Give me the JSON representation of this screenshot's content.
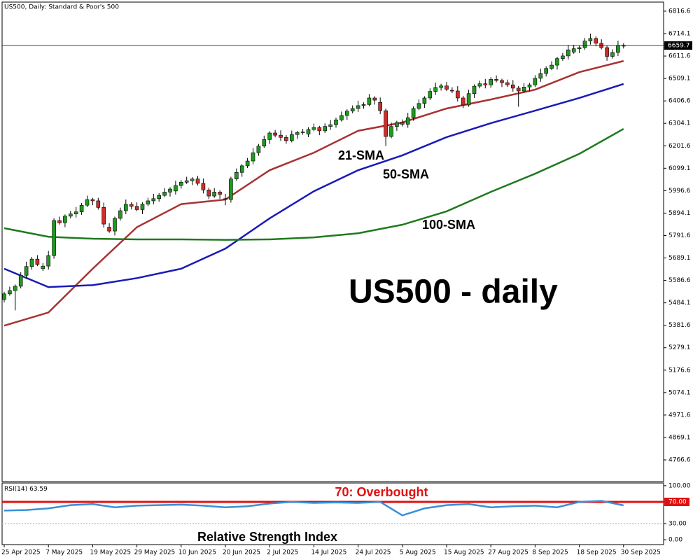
{
  "chart_data": [
    {
      "type": "candlestick",
      "title": "US500, Daily:  Standard & Poor's 500",
      "annotation": "US500 - daily",
      "categories": [
        "25 Apr 2025",
        null,
        null,
        null,
        null,
        null,
        null,
        null,
        "7 May 2025",
        null,
        null,
        null,
        null,
        null,
        null,
        null,
        "19 May 2025",
        null,
        null,
        null,
        null,
        null,
        null,
        null,
        "29 May 2025",
        null,
        null,
        null,
        null,
        null,
        null,
        null,
        "10 Jun 2025",
        null,
        null,
        null,
        null,
        null,
        null,
        null,
        "20 Jun 2025",
        null,
        null,
        null,
        null,
        null,
        null,
        null,
        "2 Jul 2025",
        null,
        null,
        null,
        null,
        null,
        null,
        null,
        "14 Jul 2025",
        null,
        null,
        null,
        null,
        null,
        null,
        null,
        "24 Jul 2025",
        null,
        null,
        null,
        null,
        null,
        null,
        null,
        "5 Aug 2025",
        null,
        null,
        null,
        null,
        null,
        null,
        null,
        "15 Aug 2025",
        null,
        null,
        null,
        null,
        null,
        null,
        null,
        "27 Aug 2025",
        null,
        null,
        null,
        null,
        null,
        null,
        null,
        "8 Sep 2025",
        null,
        null,
        null,
        null,
        null,
        null,
        null,
        "18 Sep 2025",
        null,
        null,
        null,
        null,
        null,
        null,
        null,
        "30 Sep 2025"
      ],
      "candles": [
        [
          5500,
          5535,
          5486,
          5525
        ],
        [
          5525,
          5558,
          5517,
          5540
        ],
        [
          5540,
          5568,
          5450,
          5560
        ],
        [
          5560,
          5624,
          5550,
          5610
        ],
        [
          5610,
          5672,
          5594,
          5650
        ],
        [
          5650,
          5694,
          5636,
          5684
        ],
        [
          5684,
          5702,
          5652,
          5660
        ],
        [
          5640,
          5666,
          5630,
          5652
        ],
        [
          5652,
          5722,
          5636,
          5700
        ],
        [
          5700,
          5870,
          5686,
          5860
        ],
        [
          5860,
          5878,
          5842,
          5850
        ],
        [
          5850,
          5888,
          5830,
          5880
        ],
        [
          5880,
          5904,
          5870,
          5890
        ],
        [
          5890,
          5922,
          5874,
          5900
        ],
        [
          5900,
          5940,
          5886,
          5930
        ],
        [
          5930,
          5974,
          5922,
          5956
        ],
        [
          5956,
          5964,
          5930,
          5950
        ],
        [
          5950,
          5964,
          5910,
          5920
        ],
        [
          5920,
          5942,
          5828,
          5844
        ],
        [
          5830,
          5848,
          5804,
          5812
        ],
        [
          5812,
          5878,
          5792,
          5870
        ],
        [
          5870,
          5919,
          5860,
          5905
        ],
        [
          5905,
          5956,
          5889,
          5934
        ],
        [
          5934,
          5944,
          5911,
          5925
        ],
        [
          5925,
          5943,
          5902,
          5910
        ],
        [
          5910,
          5943,
          5890,
          5935
        ],
        [
          5935,
          5964,
          5925,
          5950
        ],
        [
          5950,
          5982,
          5934,
          5960
        ],
        [
          5960,
          5985,
          5946,
          5975
        ],
        [
          5975,
          6008,
          5967,
          5990
        ],
        [
          5990,
          6012,
          5970,
          6004
        ],
        [
          5995,
          6042,
          5979,
          6020
        ],
        [
          6020,
          6045,
          6006,
          6035
        ],
        [
          6035,
          6060,
          6027,
          6042
        ],
        [
          6042,
          6058,
          6022,
          6050
        ],
        [
          6050,
          6064,
          6020,
          6030
        ],
        [
          6030,
          6052,
          5984,
          6000
        ],
        [
          6000,
          6010,
          5958,
          5972
        ],
        [
          5972,
          6008,
          5964,
          5990
        ],
        [
          5990,
          5998,
          5960,
          5980
        ],
        [
          5960,
          5982,
          5930,
          5956
        ],
        [
          5956,
          6060,
          5942,
          6050
        ],
        [
          6050,
          6098,
          6042,
          6080
        ],
        [
          6080,
          6118,
          6060,
          6110
        ],
        [
          6110,
          6146,
          6100,
          6132
        ],
        [
          6132,
          6192,
          6116,
          6170
        ],
        [
          6170,
          6210,
          6156,
          6200
        ],
        [
          6200,
          6248,
          6192,
          6230
        ],
        [
          6230,
          6268,
          6210,
          6260
        ],
        [
          6260,
          6274,
          6240,
          6250
        ],
        [
          6250,
          6272,
          6224,
          6240
        ],
        [
          6240,
          6250,
          6211,
          6225
        ],
        [
          6225,
          6271,
          6217,
          6253
        ],
        [
          6253,
          6270,
          6233,
          6262
        ],
        [
          6262,
          6279,
          6252,
          6265
        ],
        [
          6255,
          6286,
          6241,
          6276
        ],
        [
          6276,
          6303,
          6268,
          6285
        ],
        [
          6285,
          6293,
          6250,
          6270
        ],
        [
          6270,
          6304,
          6260,
          6290
        ],
        [
          6290,
          6320,
          6274,
          6298
        ],
        [
          6298,
          6330,
          6284,
          6320
        ],
        [
          6320,
          6358,
          6312,
          6340
        ],
        [
          6340,
          6368,
          6320,
          6360
        ],
        [
          6360,
          6386,
          6350,
          6372
        ],
        [
          6372,
          6407,
          6356,
          6385
        ],
        [
          6385,
          6400,
          6371,
          6390
        ],
        [
          6390,
          6438,
          6382,
          6420
        ],
        [
          6420,
          6428,
          6390,
          6410
        ],
        [
          6400,
          6422,
          6346,
          6362
        ],
        [
          6362,
          6372,
          6200,
          6244
        ],
        [
          6244,
          6308,
          6236,
          6290
        ],
        [
          6290,
          6316,
          6270,
          6308
        ],
        [
          6308,
          6322,
          6290,
          6300
        ],
        [
          6300,
          6352,
          6284,
          6330
        ],
        [
          6330,
          6382,
          6316,
          6372
        ],
        [
          6372,
          6413,
          6364,
          6395
        ],
        [
          6395,
          6428,
          6375,
          6420
        ],
        [
          6420,
          6464,
          6410,
          6450
        ],
        [
          6450,
          6490,
          6434,
          6468
        ],
        [
          6468,
          6485,
          6454,
          6475
        ],
        [
          6475,
          6493,
          6452,
          6460
        ],
        [
          6455,
          6469,
          6442,
          6452
        ],
        [
          6452,
          6474,
          6404,
          6420
        ],
        [
          6420,
          6430,
          6374,
          6388
        ],
        [
          6388,
          6458,
          6380,
          6440
        ],
        [
          6440,
          6482,
          6420,
          6474
        ],
        [
          6474,
          6499,
          6464,
          6485
        ],
        [
          6485,
          6507,
          6464,
          6480
        ],
        [
          6480,
          6515,
          6466,
          6505
        ],
        [
          6505,
          6523,
          6492,
          6500
        ],
        [
          6500,
          6508,
          6470,
          6490
        ],
        [
          6490,
          6504,
          6470,
          6480
        ],
        [
          6480,
          6502,
          6449,
          6465
        ],
        [
          6465,
          6475,
          6380,
          6452
        ],
        [
          6452,
          6488,
          6444,
          6470
        ],
        [
          6470,
          6488,
          6450,
          6480
        ],
        [
          6480,
          6524,
          6470,
          6510
        ],
        [
          6510,
          6554,
          6494,
          6532
        ],
        [
          6532,
          6565,
          6518,
          6555
        ],
        [
          6555,
          6588,
          6547,
          6570
        ],
        [
          6570,
          6608,
          6550,
          6600
        ],
        [
          6600,
          6626,
          6590,
          6612
        ],
        [
          6612,
          6662,
          6596,
          6640
        ],
        [
          6630,
          6663,
          6622,
          6645
        ],
        [
          6645,
          6658,
          6625,
          6650
        ],
        [
          6650,
          6694,
          6640,
          6680
        ],
        [
          6680,
          6714,
          6664,
          6692
        ],
        [
          6692,
          6702,
          6656,
          6670
        ],
        [
          6670,
          6688,
          6642,
          6650
        ],
        [
          6650,
          6658,
          6590,
          6610
        ],
        [
          6610,
          6642,
          6600,
          6628
        ],
        [
          6628,
          6682,
          6612,
          6660
        ],
        [
          6660,
          6670,
          6646,
          6659.7
        ]
      ],
      "up_color": "#1f9a1f",
      "down_color": "#c8302c",
      "series": [
        {
          "name": "21-SMA",
          "color": "#a83232",
          "x": [
            0,
            8,
            16,
            24,
            32,
            40,
            48,
            56,
            64,
            72,
            80,
            88,
            96,
            104,
            112
          ],
          "values": [
            5380,
            5440,
            5640,
            5830,
            5935,
            5956,
            6090,
            6170,
            6270,
            6308,
            6372,
            6413,
            6458,
            6538,
            6589
          ]
        },
        {
          "name": "50-SMA",
          "color": "#1a1ab8",
          "x": [
            0,
            8,
            16,
            24,
            32,
            40,
            48,
            56,
            64,
            72,
            80,
            88,
            96,
            104,
            112
          ],
          "values": [
            5640,
            5556,
            5565,
            5597,
            5640,
            5732,
            5870,
            5994,
            6090,
            6158,
            6241,
            6305,
            6362,
            6420,
            6484
          ]
        },
        {
          "name": "100-SMA",
          "color": "#1e7a1e",
          "x": [
            0,
            8,
            16,
            24,
            32,
            40,
            48,
            56,
            64,
            72,
            80,
            88,
            96,
            104,
            112
          ],
          "values": [
            5825,
            5786,
            5777,
            5774,
            5774,
            5772,
            5774,
            5783,
            5802,
            5841,
            5902,
            5991,
            6074,
            6165,
            6279
          ]
        }
      ],
      "ylim": [
        4667.5,
        6858
      ],
      "yticks": [
        6816.6,
        6714.1,
        6611.6,
        6509.1,
        6406.6,
        6304.1,
        6201.6,
        6099.1,
        5996.6,
        5894.1,
        5791.6,
        5689.1,
        5586.6,
        5484.1,
        5381.6,
        5279.1,
        5176.6,
        5074.1,
        4971.6,
        4869.1,
        4766.6
      ]
    },
    {
      "type": "line",
      "title": "RSI(14)",
      "series": [
        {
          "name": "Relative Strength Index",
          "color": "#3a8fd8",
          "x": [
            0,
            4,
            8,
            12,
            16,
            20,
            24,
            28,
            32,
            36,
            40,
            44,
            48,
            52,
            56,
            60,
            64,
            68,
            72,
            76,
            80,
            84,
            88,
            92,
            96,
            100,
            104,
            108,
            112
          ],
          "values": [
            54,
            55,
            58,
            64,
            66,
            60,
            63,
            64,
            65,
            63,
            60,
            62,
            67,
            70,
            68,
            69,
            68,
            70,
            45,
            58,
            64,
            66,
            60,
            62,
            63,
            60,
            70,
            72,
            63.59
          ]
        }
      ],
      "levels": [
        {
          "value": 70,
          "label": "70: Overbought",
          "color": "#e01010"
        },
        {
          "value": 30,
          "color": "#aaaaaa"
        }
      ],
      "ylim": [
        -9,
        105
      ],
      "yticks": [
        {
          "value": 100,
          "label": "100.00"
        },
        {
          "value": 70,
          "label": "70.00"
        },
        {
          "value": 30,
          "label": "30.00"
        },
        {
          "value": 0,
          "label": "0.00"
        }
      ]
    }
  ]
}
